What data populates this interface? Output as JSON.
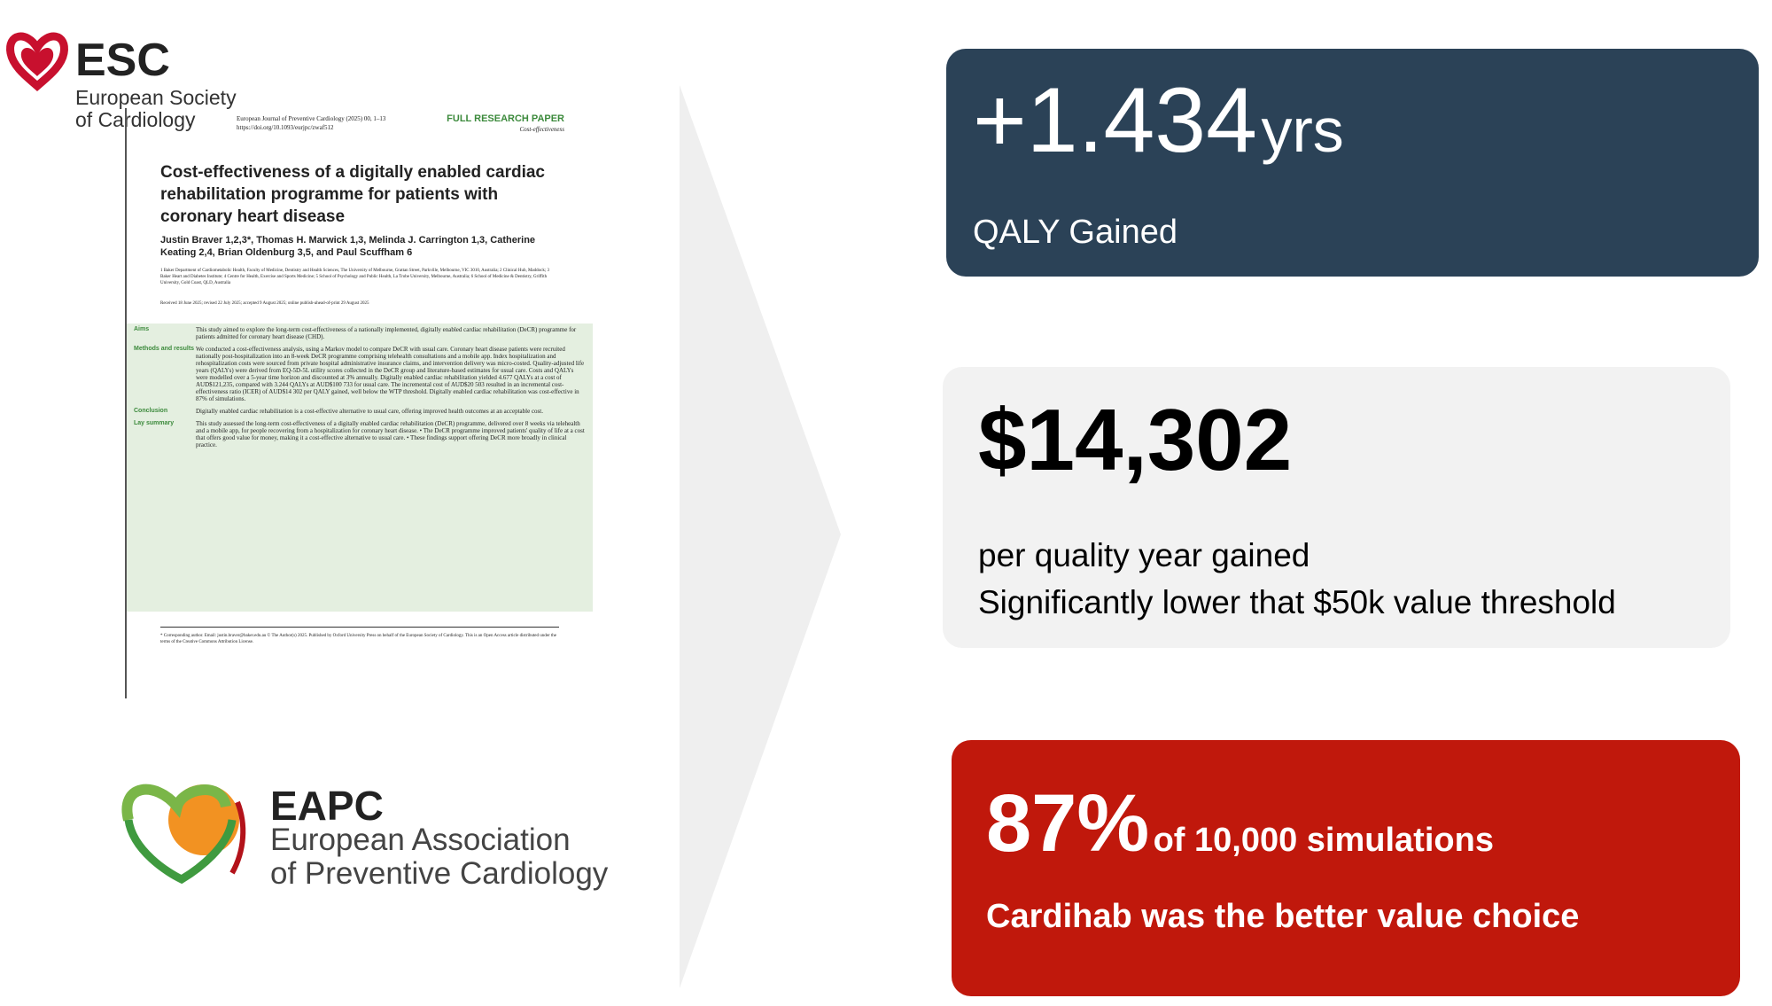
{
  "esc_logo": {
    "abbr": "ESC",
    "name_line1": "European Society",
    "name_line2": "of Cardiology"
  },
  "paper": {
    "journal": "European Journal of Preventive Cardiology (2025) 00, 1–13",
    "doi": "https://doi.org/10.1093/eurjpc/zwaf512",
    "label": "FULL RESEARCH PAPER",
    "category": "Cost-effectiveness",
    "title": "Cost-effectiveness of a digitally enabled cardiac rehabilitation programme for patients with coronary heart disease",
    "authors": "Justin Braver 1,2,3*, Thomas H. Marwick 1,3, Melinda J. Carrington 1,3, Catherine Keating 2,4, Brian Oldenburg 3,5, and Paul Scuffham 6",
    "affiliations": "1 Baker Department of Cardiometabolic Health, Faculty of Medicine, Dentistry and Health Sciences, The University of Melbourne, Grattan Street, Parkville, Melbourne, VIC 3010, Australia; 2 Clinical Hub, Maddock; 3 Baker Heart and Diabetes Institute; 4 Centre for Health, Exercise and Sports Medicine; 5 School of Psychology and Public Health, La Trobe University, Melbourne, Australia; 6 School of Medicine & Dentistry, Griffith University, Gold Coast, QLD, Australia",
    "received": "Received 18 June 2025; revised 22 July 2025; accepted 9 August 2025; online publish-ahead-of-print 29 August 2025",
    "sections": [
      {
        "heading": "Aims",
        "text": "This study aimed to explore the long-term cost-effectiveness of a nationally implemented, digitally enabled cardiac rehabilitation (DeCR) programme for patients admitted for coronary heart disease (CHD)."
      },
      {
        "heading": "Methods and results",
        "text": "We conducted a cost-effectiveness analysis, using a Markov model to compare DeCR with usual care. Coronary heart disease patients were recruited nationally post-hospitalization into an 8-week DeCR programme comprising telehealth consultations and a mobile app. Index hospitalization and rehospitalization costs were sourced from private hospital administrative insurance claims, and intervention delivery was micro-costed. Quality-adjusted life years (QALYs) were derived from EQ-5D-5L utility scores collected in the DeCR group and literature-based estimates for usual care. Costs and QALYs were modelled over a 5-year time horizon and discounted at 3% annually. Digitally enabled cardiac rehabilitation yielded 4.677 QALYs at a cost of AUD$121,235, compared with 3.244 QALYs at AUD$100 733 for usual care. The incremental cost of AUD$20 503 resulted in an incremental cost-effectiveness ratio (ICER) of AUD$14 302 per QALY gained, well below the WTP threshold. Digitally enabled cardiac rehabilitation was cost-effective in 87% of simulations."
      },
      {
        "heading": "Conclusion",
        "text": "Digitally enabled cardiac rehabilitation is a cost-effective alternative to usual care, offering improved health outcomes at an acceptable cost."
      },
      {
        "heading": "Lay summary",
        "text": "This study assessed the long-term cost-effectiveness of a digitally enabled cardiac rehabilitation (DeCR) programme, delivered over 8 weeks via telehealth and a mobile app, for people recovering from a hospitalization for coronary heart disease. • The DeCR programme improved patients' quality of life at a cost that offers good value for money, making it a cost-effective alternative to usual care. • These findings support offering DeCR more broadly in clinical practice."
      }
    ],
    "footnote": "* Corresponding author. Email: justin.braver@baker.edu.au © The Author(s) 2025. Published by Oxford University Press on behalf of the European Society of Cardiology. This is an Open Access article distributed under the terms of the Creative Commons Attribution License."
  },
  "eapc_logo": {
    "abbr": "EAPC",
    "name_line1": "European Association",
    "name_line2": "of Preventive Cardiology"
  },
  "stats": [
    {
      "value": "+1.434",
      "unit": "yrs",
      "caption": "QALY Gained"
    },
    {
      "value": "$14,302",
      "caption_line1": "per quality year gained",
      "caption_line2": "Significantly lower that $50k value threshold"
    },
    {
      "value": "87%",
      "suffix": "of 10,000 simulations",
      "caption": "Cardihab was the better value choice"
    }
  ]
}
